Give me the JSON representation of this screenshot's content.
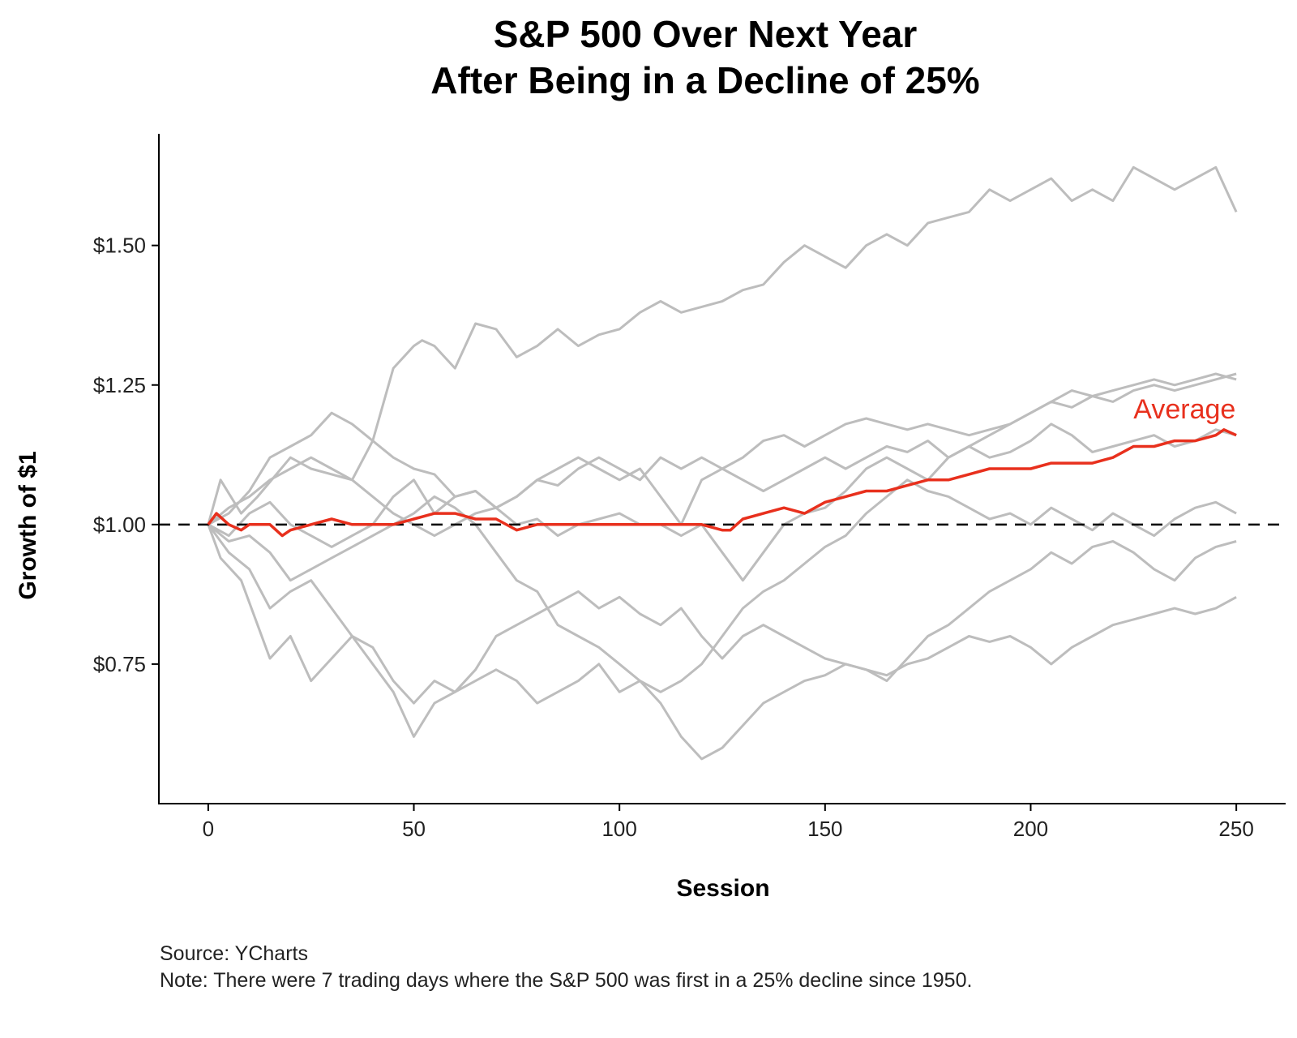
{
  "colors": {
    "series": "#bdbdbd",
    "average": "#e8301d",
    "reference": "#000000",
    "axis": "#000000"
  },
  "chart_data": {
    "type": "line",
    "title": "S&P 500 Over Next Year",
    "subtitle": "After Being in a Decline of 25%",
    "xlabel": "Session",
    "ylabel": "Growth of $1",
    "xlim": [
      -12,
      262
    ],
    "ylim": [
      0.5,
      1.7
    ],
    "x_ticks": [
      0,
      50,
      100,
      150,
      200,
      250
    ],
    "x_tick_labels": [
      "0",
      "50",
      "100",
      "150",
      "200",
      "250"
    ],
    "y_ticks": [
      0.75,
      1.0,
      1.25,
      1.5
    ],
    "y_tick_labels": [
      "$0.75",
      "$1.00",
      "$1.25",
      "$1.50"
    ],
    "grid": false,
    "reference_line": {
      "y": 1.0,
      "style": "dashed"
    },
    "series": [
      {
        "x": [
          0,
          3,
          8,
          12,
          20,
          25,
          35,
          40,
          45,
          50,
          52,
          55,
          60,
          65,
          70,
          75,
          80,
          85,
          90,
          95,
          100,
          105,
          110,
          115,
          120,
          125,
          130,
          135,
          140,
          145,
          150,
          155,
          160,
          165,
          170,
          175,
          180,
          185,
          190,
          195,
          200,
          205,
          210,
          215,
          220,
          225,
          230,
          235,
          240,
          245,
          250
        ],
        "values": [
          1.0,
          1.08,
          1.02,
          1.05,
          1.12,
          1.1,
          1.08,
          1.15,
          1.28,
          1.32,
          1.33,
          1.32,
          1.28,
          1.36,
          1.35,
          1.3,
          1.32,
          1.35,
          1.32,
          1.34,
          1.35,
          1.38,
          1.4,
          1.38,
          1.39,
          1.4,
          1.42,
          1.43,
          1.47,
          1.5,
          1.48,
          1.46,
          1.5,
          1.52,
          1.5,
          1.54,
          1.55,
          1.56,
          1.6,
          1.58,
          1.6,
          1.62,
          1.58,
          1.6,
          1.58,
          1.64,
          1.62,
          1.6,
          1.62,
          1.64,
          1.56
        ]
      },
      {
        "x": [
          0,
          5,
          10,
          15,
          20,
          25,
          30,
          35,
          40,
          45,
          50,
          55,
          60,
          65,
          70,
          75,
          80,
          85,
          90,
          95,
          100,
          105,
          110,
          115,
          120,
          125,
          130,
          135,
          140,
          145,
          150,
          155,
          160,
          165,
          170,
          175,
          180,
          185,
          190,
          195,
          200,
          205,
          210,
          215,
          220,
          225,
          230,
          235,
          240,
          245,
          250
        ],
        "values": [
          1.0,
          1.02,
          1.06,
          1.12,
          1.14,
          1.16,
          1.2,
          1.18,
          1.15,
          1.12,
          1.1,
          1.09,
          1.05,
          1.06,
          1.03,
          1.05,
          1.08,
          1.1,
          1.12,
          1.1,
          1.08,
          1.1,
          1.05,
          1.0,
          1.08,
          1.1,
          1.12,
          1.15,
          1.16,
          1.14,
          1.16,
          1.18,
          1.19,
          1.18,
          1.17,
          1.18,
          1.17,
          1.16,
          1.17,
          1.18,
          1.2,
          1.22,
          1.21,
          1.23,
          1.22,
          1.24,
          1.25,
          1.24,
          1.25,
          1.26,
          1.27
        ]
      },
      {
        "x": [
          0,
          5,
          10,
          15,
          20,
          25,
          30,
          35,
          40,
          45,
          50,
          55,
          60,
          65,
          70,
          75,
          80,
          85,
          90,
          95,
          100,
          105,
          110,
          115,
          120,
          125,
          130,
          135,
          140,
          145,
          150,
          155,
          160,
          165,
          170,
          175,
          180,
          185,
          190,
          195,
          200,
          205,
          210,
          215,
          220,
          225,
          230,
          235,
          240,
          245,
          250
        ],
        "values": [
          1.0,
          1.03,
          1.05,
          1.08,
          1.1,
          1.12,
          1.1,
          1.08,
          1.05,
          1.02,
          1.0,
          0.98,
          1.0,
          1.02,
          1.03,
          1.05,
          1.08,
          1.07,
          1.1,
          1.12,
          1.1,
          1.08,
          1.12,
          1.1,
          1.12,
          1.1,
          1.08,
          1.06,
          1.08,
          1.1,
          1.12,
          1.1,
          1.12,
          1.14,
          1.13,
          1.15,
          1.12,
          1.14,
          1.16,
          1.18,
          1.2,
          1.22,
          1.24,
          1.23,
          1.24,
          1.25,
          1.26,
          1.25,
          1.26,
          1.27,
          1.26
        ]
      },
      {
        "x": [
          0,
          5,
          10,
          15,
          20,
          25,
          30,
          35,
          40,
          45,
          50,
          55,
          60,
          65,
          70,
          75,
          80,
          85,
          90,
          95,
          100,
          105,
          110,
          115,
          120,
          125,
          130,
          135,
          140,
          145,
          150,
          155,
          160,
          165,
          170,
          175,
          180,
          185,
          190,
          195,
          200,
          205,
          210,
          215,
          220,
          225,
          230,
          235,
          240,
          245,
          250
        ],
        "values": [
          1.0,
          0.98,
          1.02,
          1.04,
          1.0,
          0.98,
          0.96,
          0.98,
          1.0,
          1.05,
          1.08,
          1.02,
          1.05,
          1.06,
          1.03,
          1.0,
          1.01,
          0.98,
          1.0,
          1.01,
          1.02,
          1.0,
          1.0,
          0.98,
          1.0,
          0.95,
          0.9,
          0.95,
          1.0,
          1.02,
          1.03,
          1.06,
          1.1,
          1.12,
          1.1,
          1.08,
          1.12,
          1.14,
          1.12,
          1.13,
          1.15,
          1.18,
          1.16,
          1.13,
          1.14,
          1.15,
          1.16,
          1.14,
          1.15,
          1.17,
          1.16
        ]
      },
      {
        "x": [
          0,
          5,
          10,
          15,
          20,
          25,
          30,
          35,
          40,
          45,
          50,
          55,
          60,
          65,
          70,
          75,
          80,
          85,
          90,
          95,
          100,
          105,
          110,
          115,
          120,
          125,
          130,
          135,
          140,
          145,
          150,
          155,
          160,
          165,
          170,
          175,
          180,
          185,
          190,
          195,
          200,
          205,
          210,
          215,
          220,
          225,
          230,
          235,
          240,
          245,
          250
        ],
        "values": [
          1.0,
          0.97,
          0.98,
          0.95,
          0.9,
          0.92,
          0.94,
          0.96,
          0.98,
          1.0,
          1.02,
          1.05,
          1.03,
          1.0,
          0.95,
          0.9,
          0.88,
          0.82,
          0.8,
          0.78,
          0.75,
          0.72,
          0.7,
          0.72,
          0.75,
          0.8,
          0.85,
          0.88,
          0.9,
          0.93,
          0.96,
          0.98,
          1.02,
          1.05,
          1.08,
          1.06,
          1.05,
          1.03,
          1.01,
          1.02,
          1.0,
          1.03,
          1.01,
          0.99,
          1.02,
          1.0,
          0.98,
          1.01,
          1.03,
          1.04,
          1.02
        ]
      },
      {
        "x": [
          0,
          5,
          10,
          15,
          20,
          25,
          30,
          35,
          40,
          45,
          50,
          55,
          60,
          65,
          70,
          75,
          80,
          85,
          90,
          95,
          100,
          105,
          110,
          115,
          120,
          125,
          130,
          135,
          140,
          145,
          150,
          155,
          160,
          165,
          170,
          175,
          180,
          185,
          190,
          195,
          200,
          205,
          210,
          215,
          220,
          225,
          230,
          235,
          240,
          245,
          250
        ],
        "values": [
          1.0,
          0.95,
          0.92,
          0.85,
          0.88,
          0.9,
          0.85,
          0.8,
          0.78,
          0.72,
          0.68,
          0.72,
          0.7,
          0.72,
          0.74,
          0.72,
          0.68,
          0.7,
          0.72,
          0.75,
          0.7,
          0.72,
          0.68,
          0.62,
          0.58,
          0.6,
          0.64,
          0.68,
          0.7,
          0.72,
          0.73,
          0.75,
          0.74,
          0.73,
          0.75,
          0.76,
          0.78,
          0.8,
          0.79,
          0.8,
          0.78,
          0.75,
          0.78,
          0.8,
          0.82,
          0.83,
          0.84,
          0.85,
          0.84,
          0.85,
          0.87
        ]
      },
      {
        "x": [
          0,
          3,
          8,
          12,
          15,
          20,
          25,
          30,
          35,
          40,
          45,
          50,
          55,
          60,
          65,
          70,
          75,
          80,
          85,
          90,
          95,
          100,
          105,
          110,
          115,
          120,
          125,
          130,
          135,
          140,
          145,
          150,
          155,
          160,
          165,
          170,
          175,
          180,
          185,
          190,
          195,
          200,
          205,
          210,
          215,
          220,
          225,
          230,
          235,
          240,
          245,
          250
        ],
        "values": [
          1.0,
          0.94,
          0.9,
          0.82,
          0.76,
          0.8,
          0.72,
          0.76,
          0.8,
          0.75,
          0.7,
          0.62,
          0.68,
          0.7,
          0.74,
          0.8,
          0.82,
          0.84,
          0.86,
          0.88,
          0.85,
          0.87,
          0.84,
          0.82,
          0.85,
          0.8,
          0.76,
          0.8,
          0.82,
          0.8,
          0.78,
          0.76,
          0.75,
          0.74,
          0.72,
          0.76,
          0.8,
          0.82,
          0.85,
          0.88,
          0.9,
          0.92,
          0.95,
          0.93,
          0.96,
          0.97,
          0.95,
          0.92,
          0.9,
          0.94,
          0.96,
          0.97
        ]
      },
      {
        "name": "Average",
        "x": [
          0,
          2,
          5,
          8,
          10,
          15,
          18,
          20,
          25,
          30,
          35,
          40,
          45,
          50,
          55,
          60,
          65,
          70,
          75,
          80,
          85,
          90,
          95,
          100,
          105,
          110,
          115,
          120,
          125,
          127,
          130,
          135,
          140,
          145,
          150,
          155,
          160,
          165,
          170,
          175,
          180,
          185,
          190,
          195,
          200,
          205,
          210,
          215,
          220,
          225,
          230,
          235,
          240,
          245,
          247,
          250
        ],
        "values": [
          1.0,
          1.02,
          1.0,
          0.99,
          1.0,
          1.0,
          0.98,
          0.99,
          1.0,
          1.01,
          1.0,
          1.0,
          1.0,
          1.01,
          1.02,
          1.02,
          1.01,
          1.01,
          0.99,
          1.0,
          1.0,
          1.0,
          1.0,
          1.0,
          1.0,
          1.0,
          1.0,
          1.0,
          0.99,
          0.99,
          1.01,
          1.02,
          1.03,
          1.02,
          1.04,
          1.05,
          1.06,
          1.06,
          1.07,
          1.08,
          1.08,
          1.09,
          1.1,
          1.1,
          1.1,
          1.11,
          1.11,
          1.11,
          1.12,
          1.14,
          1.14,
          1.15,
          1.15,
          1.16,
          1.17,
          1.16
        ]
      }
    ],
    "annotations": [
      {
        "text": "Average",
        "x": 225,
        "y": 1.19
      }
    ]
  },
  "caption": {
    "source": "Source:  YCharts",
    "note": "Note: There were 7 trading days where the S&P 500 was first in a 25% decline since 1950."
  }
}
